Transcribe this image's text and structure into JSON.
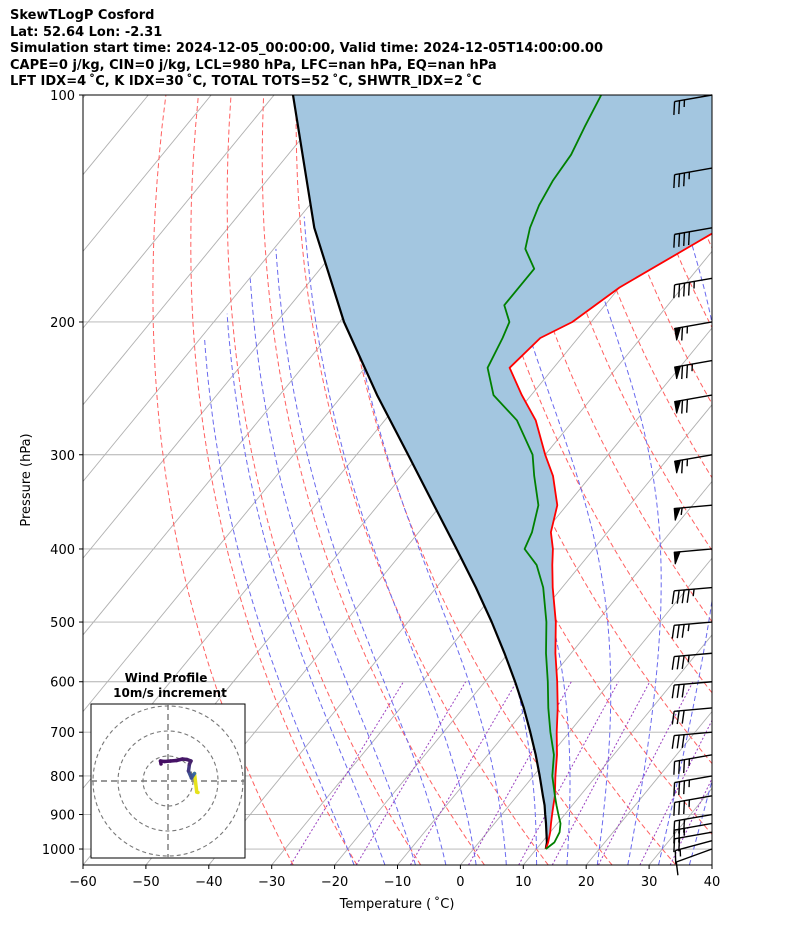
{
  "header": {
    "line1": "SkewTLogP Cosford",
    "line2": "Lat: 52.64   Lon: -2.31",
    "line3": "Simulation start time: 2024-12-05_00:00:00, Valid time: 2024-12-05T14:00:00.00",
    "line4": "CAPE=0 j/kg, CIN=0 j/kg, LCL=980 hPa, LFC=nan hPa, EQ=nan hPa",
    "line5": "LFT IDX=4 ˚C, K IDX=30 ˚C, TOTAL TOTS=52 ˚C, SHWTR_IDX=2 ˚C"
  },
  "chart_data": {
    "type": "line",
    "xlabel": "Temperature ( ˚C)",
    "ylabel": "Pressure (hPa)",
    "xlim": [
      -60,
      40
    ],
    "ylim": [
      1050,
      100
    ],
    "y_scale": "log",
    "skew": true,
    "grid": true,
    "x_ticks": [
      -60,
      -50,
      -40,
      -30,
      -20,
      -10,
      0,
      10,
      20,
      30,
      40
    ],
    "x_tick_labels": [
      "−60",
      "−50",
      "−40",
      "−30",
      "−20",
      "−10",
      "0",
      "10",
      "20",
      "30",
      "40"
    ],
    "y_ticks": [
      1000,
      900,
      800,
      700,
      600,
      500,
      400,
      300,
      200,
      100
    ],
    "y_tick_labels": [
      "1000",
      "900",
      "800",
      "700",
      "600",
      "500",
      "400",
      "300",
      "200",
      "100"
    ],
    "colors": {
      "temperature": "#ff0000",
      "dewpoint": "#008000",
      "parcel": "#000000",
      "cin_cape_fill": "#a3c6e0",
      "dry_adiabats": "#ff6060",
      "moist_adiabats": "#6a6aee",
      "mixing_ratio": "#9a40c0",
      "isotherms": "#b0b0b0",
      "isobars": "#b0b0b0"
    },
    "series": [
      {
        "key": "temperature",
        "p": [
          1000,
          980,
          950,
          925,
          900,
          875,
          850,
          800,
          750,
          700,
          650,
          600,
          550,
          500,
          450,
          420,
          400,
          380,
          350,
          320,
          300,
          270,
          250,
          230,
          210,
          200,
          180,
          160,
          150,
          140,
          130,
          120,
          110,
          100
        ],
        "t": [
          11.5,
          11.0,
          10.0,
          9.0,
          8.0,
          7.0,
          6.0,
          3.5,
          1.0,
          -2.0,
          -5.0,
          -8.5,
          -12.5,
          -16.5,
          -21.5,
          -24.5,
          -26.5,
          -29.0,
          -31.5,
          -36.0,
          -40.0,
          -46.0,
          -51.5,
          -57.0,
          -56.0,
          -53.0,
          -50.0,
          -44.5,
          -41.5,
          -38.5,
          -34.5,
          -30.0,
          -27.0,
          -22.0
        ]
      },
      {
        "key": "dewpoint",
        "p": [
          1000,
          980,
          950,
          925,
          900,
          875,
          850,
          800,
          750,
          700,
          650,
          600,
          550,
          500,
          450,
          420,
          400,
          380,
          350,
          320,
          300,
          270,
          250,
          230,
          210,
          200,
          190,
          170,
          160,
          150,
          140,
          130,
          120,
          110,
          100
        ],
        "t": [
          11.5,
          12.0,
          11.5,
          10.5,
          9.0,
          7.5,
          6.0,
          3.0,
          0.5,
          -3.0,
          -6.5,
          -10.0,
          -14.0,
          -18.0,
          -23.0,
          -27.0,
          -31.0,
          -32.0,
          -34.5,
          -39.0,
          -42.0,
          -49.0,
          -56.0,
          -60.5,
          -62.0,
          -63.0,
          -66.0,
          -66.0,
          -70.0,
          -72.0,
          -73.5,
          -74.5,
          -75.0,
          -76.5,
          -78.0
        ]
      },
      {
        "key": "parcel",
        "p": [
          1000,
          980,
          950,
          925,
          900,
          875,
          850,
          800,
          750,
          700,
          650,
          600,
          550,
          500,
          450,
          400,
          350,
          300,
          250,
          200,
          150,
          100
        ],
        "t": [
          11.5,
          10.8,
          9.4,
          8.2,
          6.9,
          5.6,
          4.1,
          1.0,
          -2.4,
          -6.2,
          -10.4,
          -15.2,
          -20.6,
          -26.7,
          -33.7,
          -41.8,
          -51.1,
          -61.8,
          -74.5,
          -89.3,
          -106.3,
          -127.0
        ]
      }
    ],
    "winds": {
      "p": [
        1000,
        975,
        950,
        925,
        900,
        850,
        800,
        750,
        700,
        650,
        600,
        550,
        500,
        450,
        400,
        350,
        300,
        250,
        225,
        200,
        175,
        150,
        125,
        100
      ],
      "speed_kt": [
        10,
        15,
        20,
        25,
        30,
        35,
        35,
        35,
        30,
        30,
        30,
        35,
        35,
        45,
        50,
        55,
        65,
        70,
        75,
        65,
        45,
        40,
        35,
        25
      ],
      "direction_deg": [
        250,
        255,
        260,
        260,
        260,
        260,
        260,
        260,
        265,
        265,
        265,
        265,
        265,
        265,
        265,
        265,
        260,
        260,
        260,
        260,
        260,
        260,
        260,
        260
      ]
    },
    "inset": {
      "title": "Wind Profile",
      "subtitle": "10m/s increment",
      "rings": [
        10,
        20,
        30
      ],
      "hodograph_u": [
        12.0,
        11.5,
        10.6,
        10.0,
        9.4,
        8.2,
        8.6,
        9.2,
        7.6,
        5.8,
        3.4,
        1.0,
        -1.4,
        -3.0,
        -2.8
      ],
      "hodograph_v": [
        -4.6,
        -4.4,
        3.0,
        2.2,
        1.2,
        4.0,
        6.8,
        8.0,
        8.6,
        8.8,
        8.2,
        8.0,
        7.8,
        8.0,
        6.8
      ],
      "hodograph_colors": [
        "#e6e21c",
        "#e6e21c",
        "#3a6ea5",
        "#3a5f9a",
        "#3e5090",
        "#433880",
        "#47286f",
        "#46206a",
        "#461a68",
        "#461568",
        "#461266",
        "#451065",
        "#440e64",
        "#440c62",
        "#440a60"
      ]
    }
  }
}
